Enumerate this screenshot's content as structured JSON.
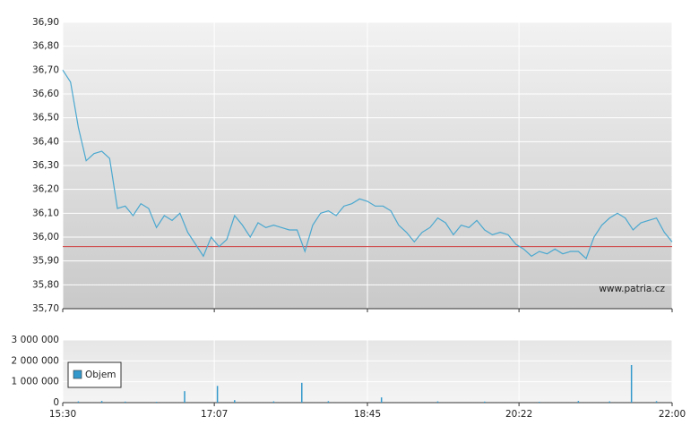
{
  "chart_data": [
    {
      "type": "line",
      "color": "#4aa8d0",
      "x": [
        "15:30",
        "15:35",
        "15:40",
        "15:45",
        "15:50",
        "15:55",
        "16:00",
        "16:05",
        "16:10",
        "16:15",
        "16:20",
        "16:25",
        "16:30",
        "16:35",
        "16:40",
        "16:45",
        "16:50",
        "16:55",
        "17:00",
        "17:05",
        "17:10",
        "17:15",
        "17:20",
        "17:25",
        "17:30",
        "17:35",
        "17:40",
        "17:45",
        "17:50",
        "17:55",
        "18:00",
        "18:05",
        "18:10",
        "18:15",
        "18:20",
        "18:25",
        "18:30",
        "18:35",
        "18:40",
        "18:45",
        "18:50",
        "18:55",
        "19:00",
        "19:05",
        "19:10",
        "19:15",
        "19:20",
        "19:25",
        "19:30",
        "19:35",
        "19:40",
        "19:45",
        "19:50",
        "19:55",
        "20:00",
        "20:05",
        "20:10",
        "20:15",
        "20:20",
        "20:25",
        "20:30",
        "20:35",
        "20:40",
        "20:45",
        "20:50",
        "20:55",
        "21:00",
        "21:05",
        "21:10",
        "21:15",
        "21:20",
        "21:25",
        "21:30",
        "21:35",
        "21:40",
        "21:45",
        "21:50",
        "21:55",
        "22:00"
      ],
      "values": [
        36.7,
        36.65,
        36.46,
        36.32,
        36.35,
        36.36,
        36.33,
        36.12,
        36.13,
        36.09,
        36.14,
        36.12,
        36.04,
        36.09,
        36.07,
        36.1,
        36.02,
        35.97,
        35.92,
        36.0,
        35.96,
        35.99,
        36.09,
        36.05,
        36.0,
        36.06,
        36.04,
        36.05,
        36.04,
        36.03,
        36.03,
        35.94,
        36.05,
        36.1,
        36.11,
        36.09,
        36.13,
        36.14,
        36.16,
        36.15,
        36.13,
        36.13,
        36.11,
        36.05,
        36.02,
        35.98,
        36.02,
        36.04,
        36.08,
        36.06,
        36.01,
        36.05,
        36.04,
        36.07,
        36.03,
        36.01,
        36.02,
        36.01,
        35.97,
        35.95,
        35.92,
        35.94,
        35.93,
        35.95,
        35.93,
        35.94,
        35.94,
        35.91,
        36.0,
        36.05,
        36.08,
        36.1,
        36.08,
        36.03,
        36.06,
        36.07,
        36.08,
        36.02,
        35.98
      ],
      "xlim": [
        "15:30",
        "22:00"
      ],
      "ylim": [
        35.7,
        36.9
      ],
      "yticks": [
        {
          "value": 35.7,
          "label": "35,70"
        },
        {
          "value": 35.8,
          "label": "35,80"
        },
        {
          "value": 35.9,
          "label": "35,90"
        },
        {
          "value": 36.0,
          "label": "36,00"
        },
        {
          "value": 36.1,
          "label": "36,10"
        },
        {
          "value": 36.2,
          "label": "36,20"
        },
        {
          "value": 36.3,
          "label": "36,30"
        },
        {
          "value": 36.4,
          "label": "36,40"
        },
        {
          "value": 36.5,
          "label": "36,50"
        },
        {
          "value": 36.6,
          "label": "36,60"
        },
        {
          "value": 36.7,
          "label": "36,70"
        },
        {
          "value": 36.8,
          "label": "36,80"
        },
        {
          "value": 36.9,
          "label": "36,90"
        }
      ],
      "reference_line": 35.96,
      "reference_color": "#d04040",
      "annotation": "www.patria.cz",
      "grid": true
    },
    {
      "type": "bar",
      "x": [
        "15:40",
        "15:55",
        "16:10",
        "16:30",
        "16:48",
        "17:09",
        "17:20",
        "17:45",
        "18:03",
        "18:20",
        "18:54",
        "19:30",
        "20:00",
        "20:35",
        "21:00",
        "21:20",
        "21:34",
        "21:50"
      ],
      "series": [
        {
          "name": "Objem",
          "color": "#3399cc",
          "values": [
            60000,
            80000,
            50000,
            40000,
            550000,
            800000,
            120000,
            60000,
            950000,
            70000,
            250000,
            60000,
            50000,
            40000,
            80000,
            60000,
            1800000,
            70000
          ]
        }
      ],
      "xlim": [
        "15:30",
        "22:00"
      ],
      "xticks": [
        "15:30",
        "17:07",
        "18:45",
        "20:22",
        "22:00"
      ],
      "ylim": [
        0,
        3000000
      ],
      "yticks": [
        0,
        {
          "value": 1000000,
          "label": "1 000 000"
        },
        {
          "value": 2000000,
          "label": "2 000 000"
        },
        {
          "value": 3000000,
          "label": "3 000 000"
        }
      ],
      "grid": true
    }
  ]
}
